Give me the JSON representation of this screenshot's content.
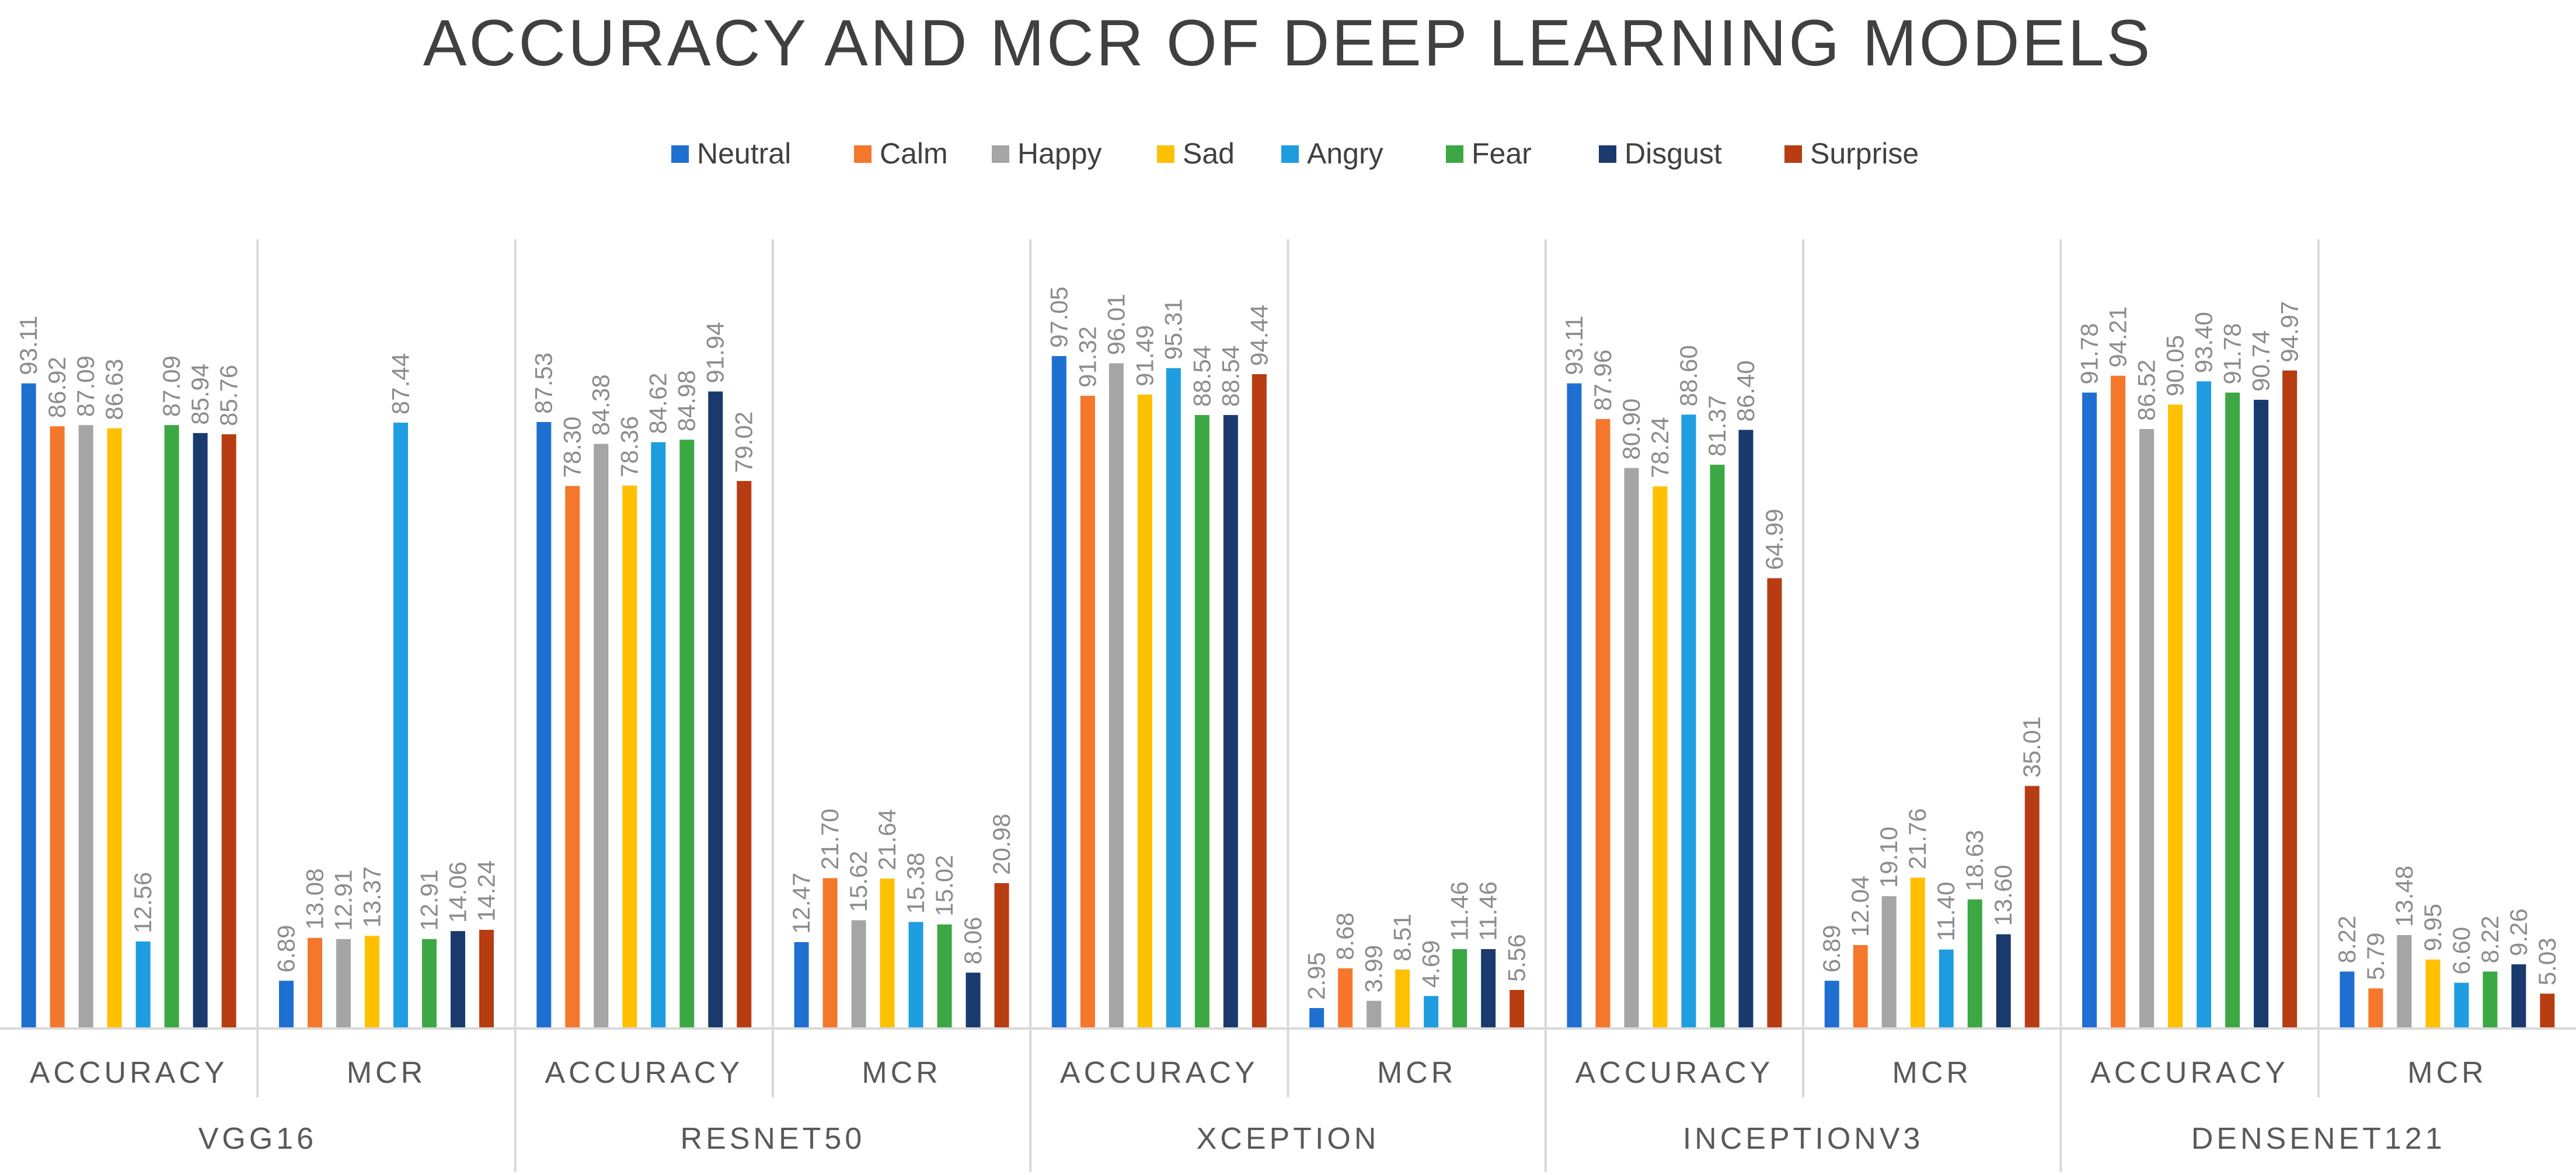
{
  "chart_data": {
    "type": "bar",
    "title": "ACCURACY AND MCR OF DEEP LEARNING MODELS",
    "legend_position": "top-center",
    "grid": false,
    "ylim": [
      0,
      100
    ],
    "categories": [
      "Neutral",
      "Calm",
      "Happy",
      "Sad",
      "Angry",
      "Fear",
      "Disgust",
      "Surprise"
    ],
    "colors": [
      "#1f6fd1",
      "#f5772b",
      "#a5a5a5",
      "#ffc000",
      "#1e9de0",
      "#3ca844",
      "#1a3a6e",
      "#b83c12"
    ],
    "groups": [
      {
        "model": "VGG16",
        "metrics": [
          {
            "name": "ACCURACY",
            "values": [
              93.11,
              86.92,
              87.09,
              86.63,
              12.56,
              87.09,
              85.94,
              85.76
            ],
            "labels": [
              "93.11",
              "86.92",
              "87.09",
              "86.63",
              "12.56",
              "87.09",
              "85.94",
              "85.76"
            ]
          },
          {
            "name": "MCR",
            "values": [
              6.89,
              13.08,
              12.91,
              13.37,
              87.44,
              12.91,
              14.06,
              14.24
            ],
            "labels": [
              "6.89",
              "13.08",
              "12.91",
              "13.37",
              "87.44",
              "12.91",
              "14.06",
              "14.24"
            ]
          }
        ]
      },
      {
        "model": "RESNET50",
        "metrics": [
          {
            "name": "ACCURACY",
            "values": [
              87.53,
              78.3,
              84.38,
              78.36,
              84.62,
              84.98,
              91.94,
              79.02
            ],
            "labels": [
              "87.53",
              "78.30",
              "84.38",
              "78.36",
              "84.62",
              "84.98",
              "91.94",
              "79.02"
            ]
          },
          {
            "name": "MCR",
            "values": [
              12.47,
              21.7,
              15.62,
              21.64,
              15.38,
              15.02,
              8.06,
              20.98
            ],
            "labels": [
              "12.47",
              "21.70",
              "15.62",
              "21.64",
              "15.38",
              "15.02",
              "8.06",
              "20.98"
            ]
          }
        ]
      },
      {
        "model": "XCEPTION",
        "metrics": [
          {
            "name": "ACCURACY",
            "values": [
              97.05,
              91.32,
              96.01,
              91.49,
              95.31,
              88.54,
              88.54,
              94.44
            ],
            "labels": [
              "97.05",
              "91.32",
              "96.01",
              "91.49",
              "95.31",
              "88.54",
              "88.54",
              "94.44"
            ]
          },
          {
            "name": "MCR",
            "values": [
              2.95,
              8.68,
              3.99,
              8.51,
              4.69,
              11.46,
              11.46,
              5.56
            ],
            "labels": [
              "2.95",
              "8.68",
              "3.99",
              "8.51",
              "4.69",
              "11.46",
              "11.46",
              "5.56"
            ]
          }
        ]
      },
      {
        "model": "INCEPTIONV3",
        "metrics": [
          {
            "name": "ACCURACY",
            "values": [
              93.11,
              87.96,
              80.9,
              78.24,
              88.6,
              81.37,
              86.4,
              64.99
            ],
            "labels": [
              "93.11",
              "87.96",
              "80.90",
              "78.24",
              "88.60",
              "81.37",
              "86.40",
              "64.99"
            ]
          },
          {
            "name": "MCR",
            "values": [
              6.89,
              12.04,
              19.1,
              21.76,
              11.4,
              18.63,
              13.6,
              35.01
            ],
            "labels": [
              "6.89",
              "12.04",
              "19.10",
              "21.76",
              "11.40",
              "18.63",
              "13.60",
              "35.01"
            ]
          }
        ]
      },
      {
        "model": "DENSENET121",
        "metrics": [
          {
            "name": "ACCURACY",
            "values": [
              91.78,
              94.21,
              86.52,
              90.05,
              93.4,
              91.78,
              90.74,
              94.97
            ],
            "labels": [
              "91.78",
              "94.21",
              "86.52",
              "90.05",
              "93.40",
              "91.78",
              "90.74",
              "94.97"
            ]
          },
          {
            "name": "MCR",
            "values": [
              8.22,
              5.79,
              13.48,
              9.95,
              6.6,
              8.22,
              9.26,
              5.03
            ],
            "labels": [
              "8.22",
              "5.79",
              "13.48",
              "9.95",
              "6.60",
              "8.22",
              "9.26",
              "5.03"
            ]
          }
        ]
      }
    ]
  }
}
